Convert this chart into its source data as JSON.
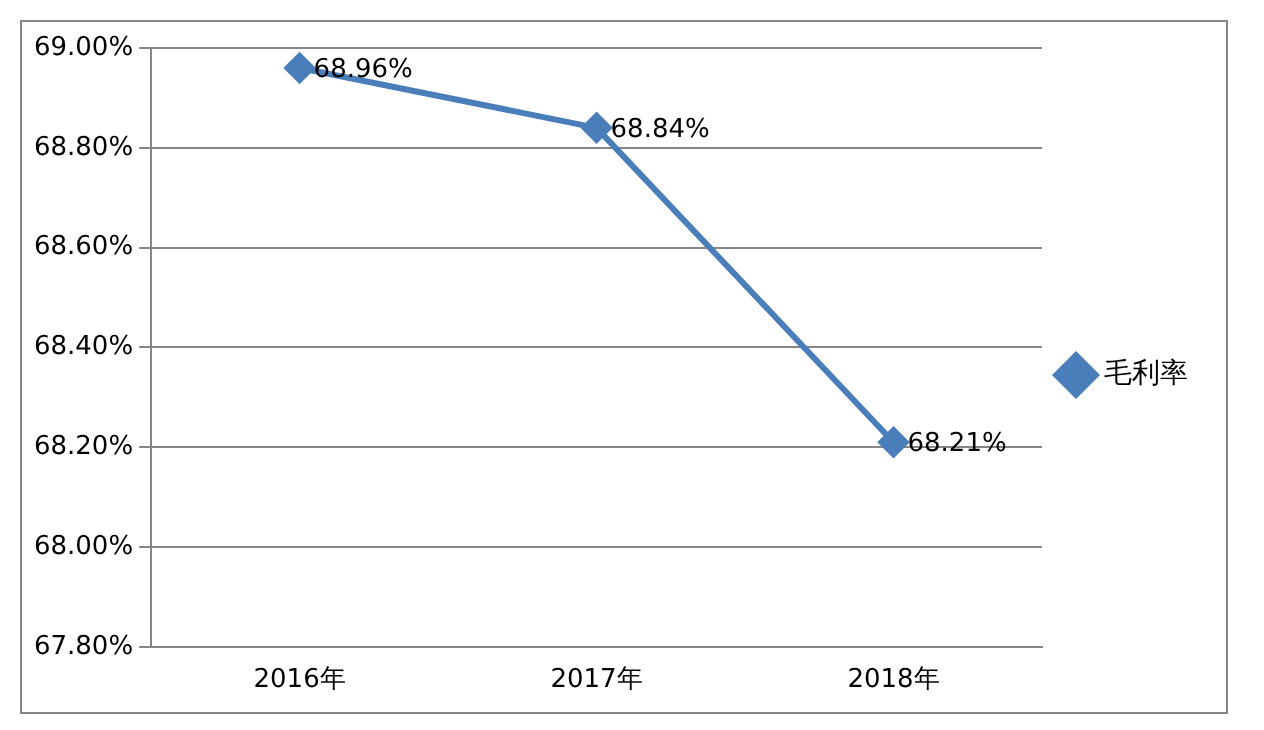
{
  "chart_data": {
    "type": "line",
    "categories": [
      "2016年",
      "2017年",
      "2018年"
    ],
    "series": [
      {
        "name": "毛利率",
        "color": "#4a7ebb",
        "values": [
          68.96,
          68.84,
          68.21
        ],
        "value_labels": [
          "68.96%",
          "68.84%",
          "68.21%"
        ]
      }
    ],
    "ylim": [
      67.8,
      69.0
    ],
    "yticks": [
      {
        "value": 67.8,
        "label": "67.80%"
      },
      {
        "value": 68.0,
        "label": "68.00%"
      },
      {
        "value": 68.2,
        "label": "68.20%"
      },
      {
        "value": 68.4,
        "label": "68.40%"
      },
      {
        "value": 68.6,
        "label": "68.60%"
      },
      {
        "value": 68.8,
        "label": "68.80%"
      },
      {
        "value": 69.0,
        "label": "69.00%"
      }
    ],
    "grid": "y",
    "legend": "right",
    "marker": "diamond",
    "line_style": "solid"
  }
}
